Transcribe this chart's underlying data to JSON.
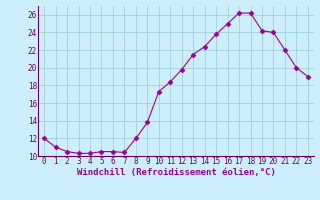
{
  "x": [
    0,
    1,
    2,
    3,
    4,
    5,
    6,
    7,
    8,
    9,
    10,
    11,
    12,
    13,
    14,
    15,
    16,
    17,
    18,
    19,
    20,
    21,
    22,
    23
  ],
  "y": [
    12,
    11,
    10.5,
    10.3,
    10.3,
    10.5,
    10.5,
    10.4,
    12,
    13.8,
    17.3,
    18.4,
    19.8,
    21.5,
    22.4,
    23.8,
    25,
    26.2,
    26.2,
    24.2,
    24,
    22,
    20,
    19
  ],
  "line_color": "#990099",
  "marker": "D",
  "background_color": "#cceeff",
  "grid_color": "#99cccc",
  "xlabel": "Windchill (Refroidissement éolien,°C)",
  "xlabel_color": "#990099",
  "ylim": [
    10,
    27
  ],
  "xlim": [
    -0.5,
    23.5
  ],
  "yticks": [
    10,
    12,
    14,
    16,
    18,
    20,
    22,
    24,
    26
  ],
  "xticks": [
    0,
    1,
    2,
    3,
    4,
    5,
    6,
    7,
    8,
    9,
    10,
    11,
    12,
    13,
    14,
    15,
    16,
    17,
    18,
    19,
    20,
    21,
    22,
    23
  ],
  "tick_label_fontsize": 5.5,
  "xlabel_fontsize": 6.5,
  "marker_size": 2.5,
  "line_width": 0.8
}
